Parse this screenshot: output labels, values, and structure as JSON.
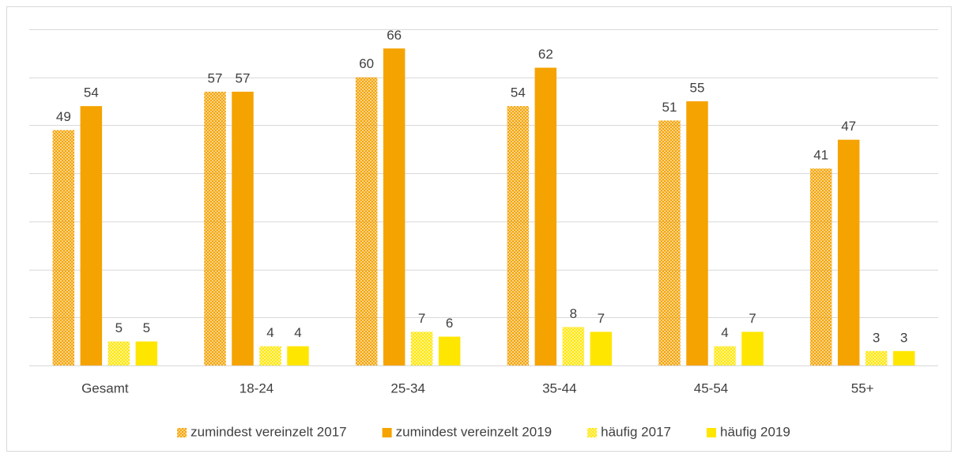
{
  "chart_data": {
    "type": "bar",
    "categories": [
      "Gesamt",
      "18-24",
      "25-34",
      "35-44",
      "45-54",
      "55+"
    ],
    "series": [
      {
        "name": "zumindest vereinzelt 2017",
        "color": "#f5a300",
        "pattern": "dots",
        "values": [
          49,
          57,
          60,
          54,
          51,
          41
        ]
      },
      {
        "name": "zumindest vereinzelt 2019",
        "color": "#f5a300",
        "values": [
          54,
          57,
          66,
          62,
          55,
          47
        ]
      },
      {
        "name": "häufig 2017",
        "color": "#ffe600",
        "pattern": "dots",
        "values": [
          5,
          4,
          7,
          8,
          4,
          3
        ]
      },
      {
        "name": "häufig 2019",
        "color": "#ffe600",
        "values": [
          5,
          4,
          6,
          7,
          7,
          3
        ]
      }
    ],
    "ylim": [
      0,
      70
    ],
    "yticks": [
      0,
      10,
      20,
      30,
      40,
      50,
      60,
      70
    ],
    "grid": true,
    "show_ytick_labels": false,
    "legend": "bottom"
  }
}
